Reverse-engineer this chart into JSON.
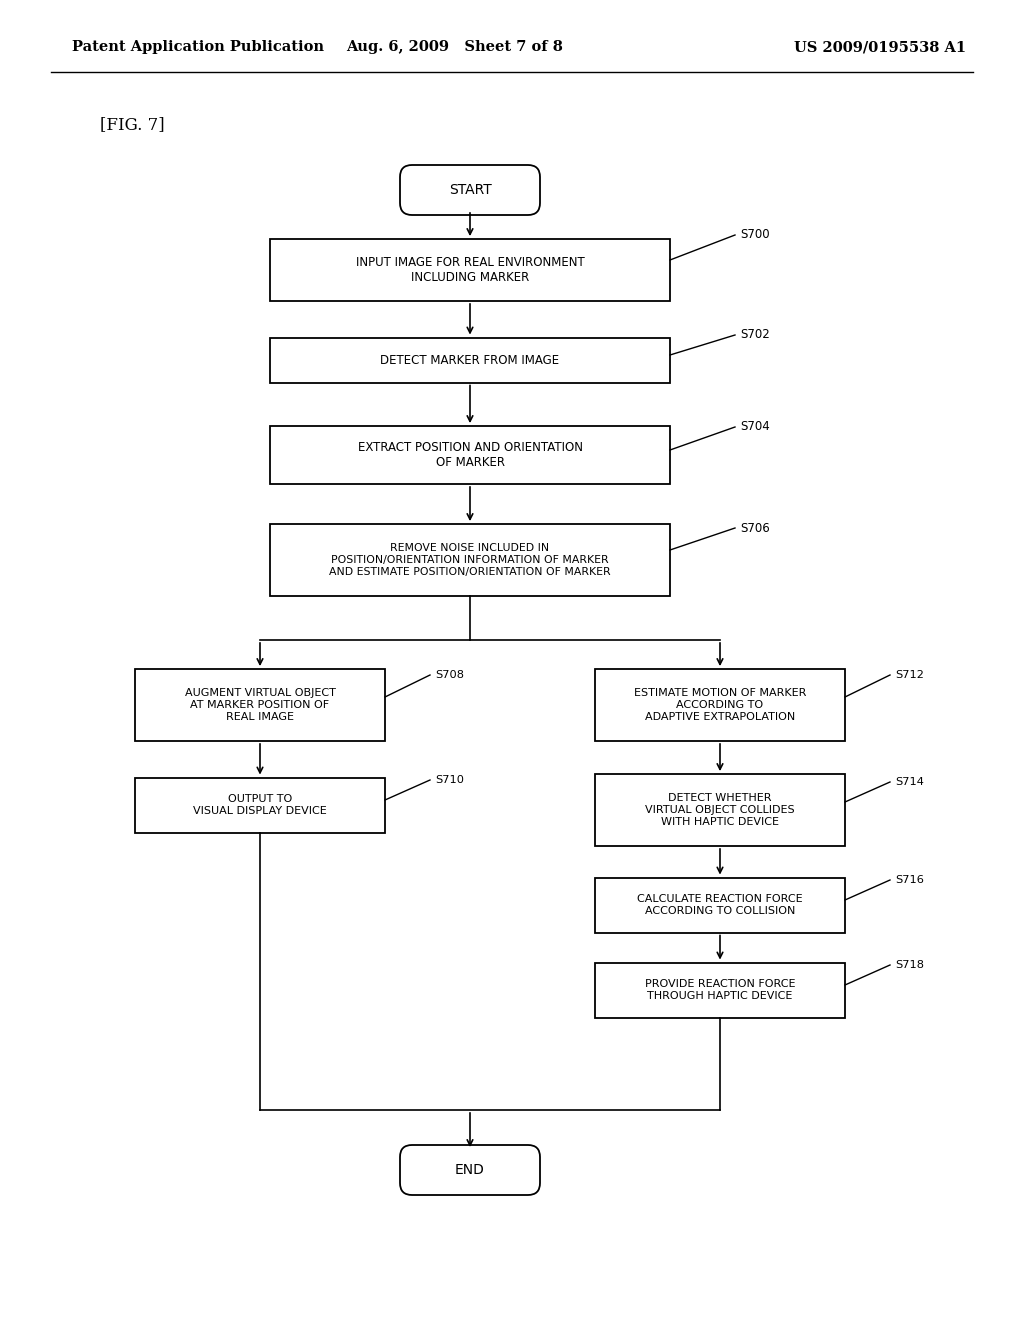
{
  "background_color": "#ffffff",
  "header_left": "Patent Application Publication",
  "header_center": "Aug. 6, 2009   Sheet 7 of 8",
  "header_right": "US 2009/0195538 A1",
  "fig_label": "[FIG. 7]",
  "start_text": "START",
  "end_text": "END",
  "s700_text": "INPUT IMAGE FOR REAL ENVIRONMENT\nINCLUDING MARKER",
  "s702_text": "DETECT MARKER FROM IMAGE",
  "s704_text": "EXTRACT POSITION AND ORIENTATION\nOF MARKER",
  "s706_text": "REMOVE NOISE INCLUDED IN\nPOSITION/ORIENTATION INFORMATION OF MARKER\nAND ESTIMATE POSITION/ORIENTATION OF MARKER",
  "s708_text": "AUGMENT VIRTUAL OBJECT\nAT MARKER POSITION OF\nREAL IMAGE",
  "s710_text": "OUTPUT TO\nVISUAL DISPLAY DEVICE",
  "s712_text": "ESTIMATE MOTION OF MARKER\nACCORDING TO\nADAPTIVE EXTRAPOLATION",
  "s714_text": "DETECT WHETHER\nVIRTUAL OBJECT COLLIDES\nWITH HAPTIC DEVICE",
  "s716_text": "CALCULATE REACTION FORCE\nACCORDING TO COLLISION",
  "s718_text": "PROVIDE REACTION FORCE\nTHROUGH HAPTIC DEVICE"
}
